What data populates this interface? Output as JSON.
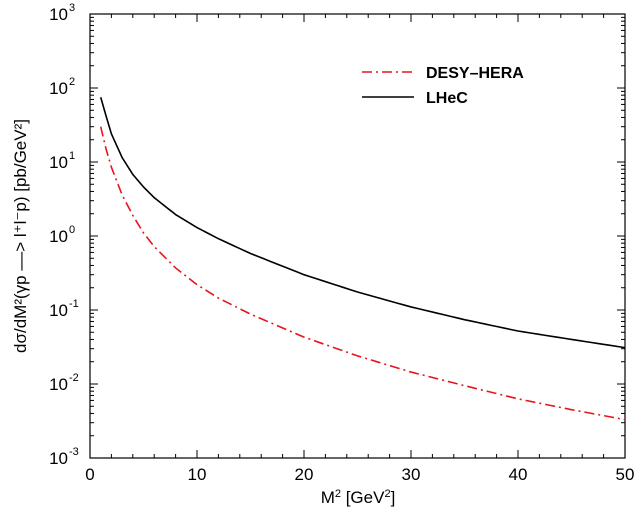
{
  "chart_data": {
    "type": "line",
    "title": "",
    "xlabel": {
      "base": "M",
      "sup": "2",
      "rest": " [GeV",
      "sup2": "2",
      "end": "]"
    },
    "ylabel_text": "dσ/dM²(γp ––> l⁺l⁻p) [pb/GeV²]",
    "x_ticks": [
      "0",
      "10",
      "20",
      "30",
      "40",
      "50"
    ],
    "y_ticks": [
      {
        "base": "10",
        "exp": "-3"
      },
      {
        "base": "10",
        "exp": "-2"
      },
      {
        "base": "10",
        "exp": "-1"
      },
      {
        "base": "10",
        "exp": "0"
      },
      {
        "base": "10",
        "exp": "1"
      },
      {
        "base": "10",
        "exp": "2"
      },
      {
        "base": "10",
        "exp": "3"
      }
    ],
    "xlim": [
      0,
      50
    ],
    "ylim": [
      0.001,
      1000
    ],
    "yscale": "log",
    "grid": false,
    "legend_position": "top-right",
    "series": [
      {
        "name": "DESY–HERA",
        "color": "#e8141c",
        "style": "dash-dot",
        "x": [
          1,
          1.5,
          2,
          3,
          4,
          5,
          6,
          8,
          10,
          12,
          15,
          20,
          25,
          30,
          35,
          40,
          45,
          50
        ],
        "y": [
          30,
          15,
          8.5,
          3.6,
          1.9,
          1.1,
          0.72,
          0.37,
          0.22,
          0.145,
          0.088,
          0.043,
          0.024,
          0.0145,
          0.0095,
          0.0063,
          0.0045,
          0.0033
        ]
      },
      {
        "name": "LHeC",
        "color": "#000000",
        "style": "solid",
        "x": [
          1,
          1.5,
          2,
          3,
          4,
          5,
          6,
          8,
          10,
          12,
          15,
          20,
          25,
          30,
          35,
          40,
          45,
          50
        ],
        "y": [
          75,
          42,
          24,
          11.5,
          6.8,
          4.6,
          3.3,
          1.95,
          1.3,
          0.92,
          0.58,
          0.3,
          0.175,
          0.11,
          0.074,
          0.052,
          0.04,
          0.031
        ]
      }
    ]
  }
}
